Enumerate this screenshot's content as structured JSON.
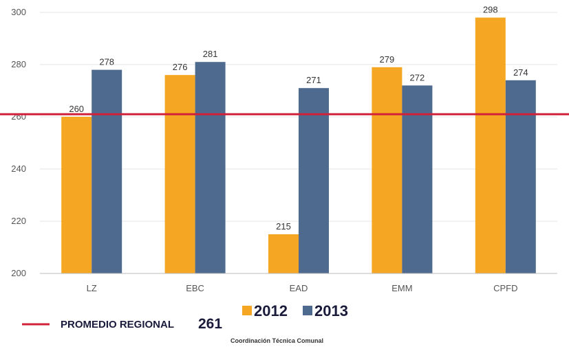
{
  "chart_data": {
    "type": "bar",
    "categories": [
      "LZ",
      "EBC",
      "EAD",
      "EMM",
      "CPFD"
    ],
    "series": [
      {
        "name": "2012",
        "values": [
          260,
          276,
          215,
          279,
          298
        ],
        "color": "#F5A623"
      },
      {
        "name": "2013",
        "values": [
          278,
          281,
          271,
          272,
          274
        ],
        "color": "#4F6A8F"
      }
    ],
    "ylim": [
      200,
      300
    ],
    "yticks": [
      200,
      220,
      240,
      260,
      280,
      300
    ],
    "grid": true,
    "reference_line": {
      "label": "PROMEDIO REGIONAL",
      "value": 261,
      "value_label": "261",
      "color": "#D0203A"
    },
    "legend_position": "bottom",
    "footer": "Coordinación Técnica Comunal"
  }
}
